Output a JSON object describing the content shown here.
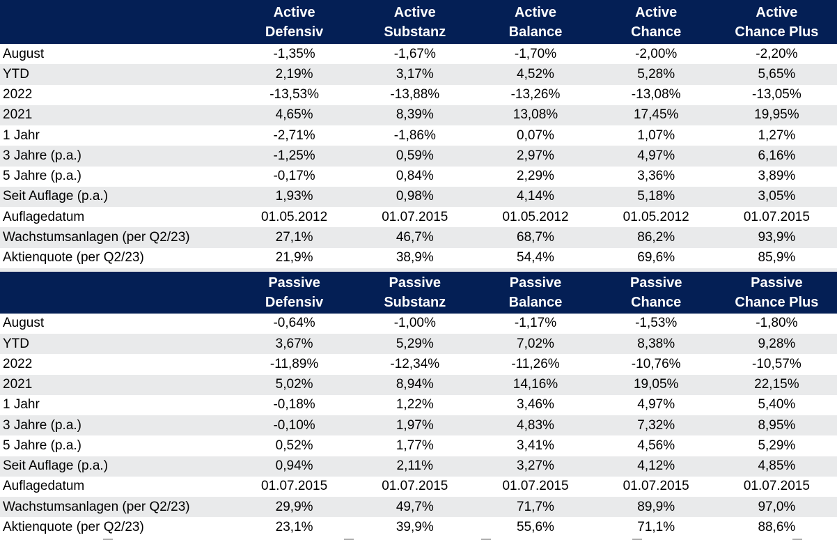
{
  "colors": {
    "header_bg": "#041F55",
    "header_text": "#FFFFFF",
    "row_bg": "#FFFFFF",
    "row_alt_bg": "#E9EAEB",
    "body_text": "#000000"
  },
  "sections": [
    {
      "id": "active",
      "columns": [
        {
          "line1": "Active",
          "line2": "Defensiv"
        },
        {
          "line1": "Active",
          "line2": "Substanz"
        },
        {
          "line1": "Active",
          "line2": "Balance"
        },
        {
          "line1": "Active",
          "line2": "Chance"
        },
        {
          "line1": "Active",
          "line2": "Chance Plus"
        }
      ],
      "rows": [
        {
          "label": "August",
          "values": [
            "-1,35%",
            "-1,67%",
            "-1,70%",
            "-2,00%",
            "-2,20%"
          ]
        },
        {
          "label": "YTD",
          "values": [
            "2,19%",
            "3,17%",
            "4,52%",
            "5,28%",
            "5,65%"
          ]
        },
        {
          "label": "2022",
          "values": [
            "-13,53%",
            "-13,88%",
            "-13,26%",
            "-13,08%",
            "-13,05%"
          ]
        },
        {
          "label": "2021",
          "values": [
            "4,65%",
            "8,39%",
            "13,08%",
            "17,45%",
            "19,95%"
          ]
        },
        {
          "label": "1 Jahr",
          "values": [
            "-2,71%",
            "-1,86%",
            "0,07%",
            "1,07%",
            "1,27%"
          ]
        },
        {
          "label": "3 Jahre (p.a.)",
          "values": [
            "-1,25%",
            "0,59%",
            "2,97%",
            "4,97%",
            "6,16%"
          ]
        },
        {
          "label": "5 Jahre (p.a.)",
          "values": [
            "-0,17%",
            "0,84%",
            "2,29%",
            "3,36%",
            "3,89%"
          ]
        },
        {
          "label": "Seit Auflage (p.a.)",
          "values": [
            "1,93%",
            "0,98%",
            "4,14%",
            "5,18%",
            "3,05%"
          ]
        },
        {
          "label": "Auflagedatum",
          "values": [
            "01.05.2012",
            "01.07.2015",
            "01.05.2012",
            "01.05.2012",
            "01.07.2015"
          ]
        },
        {
          "label": "Wachstumsanlagen (per Q2/23)",
          "values": [
            "27,1%",
            "46,7%",
            "68,7%",
            "86,2%",
            "93,9%"
          ]
        },
        {
          "label": "Aktienquote (per Q2/23)",
          "values": [
            "21,9%",
            "38,9%",
            "54,4%",
            "69,6%",
            "85,9%"
          ]
        }
      ]
    },
    {
      "id": "passive",
      "columns": [
        {
          "line1": "Passive",
          "line2": "Defensiv"
        },
        {
          "line1": "Passive",
          "line2": "Substanz"
        },
        {
          "line1": "Passive",
          "line2": "Balance"
        },
        {
          "line1": "Passive",
          "line2": "Chance"
        },
        {
          "line1": "Passive",
          "line2": "Chance Plus"
        }
      ],
      "rows": [
        {
          "label": "August",
          "values": [
            "-0,64%",
            "-1,00%",
            "-1,17%",
            "-1,53%",
            "-1,80%"
          ]
        },
        {
          "label": "YTD",
          "values": [
            "3,67%",
            "5,29%",
            "7,02%",
            "8,38%",
            "9,28%"
          ]
        },
        {
          "label": "2022",
          "values": [
            "-11,89%",
            "-12,34%",
            "-11,26%",
            "-10,76%",
            "-10,57%"
          ]
        },
        {
          "label": "2021",
          "values": [
            "5,02%",
            "8,94%",
            "14,16%",
            "19,05%",
            "22,15%"
          ]
        },
        {
          "label": "1 Jahr",
          "values": [
            "-0,18%",
            "1,22%",
            "3,46%",
            "4,97%",
            "5,40%"
          ]
        },
        {
          "label": "3 Jahre (p.a.)",
          "values": [
            "-0,10%",
            "1,97%",
            "4,83%",
            "7,32%",
            "8,95%"
          ]
        },
        {
          "label": "5 Jahre (p.a.)",
          "values": [
            "0,52%",
            "1,77%",
            "3,41%",
            "4,56%",
            "5,29%"
          ]
        },
        {
          "label": "Seit Auflage (p.a.)",
          "values": [
            "0,94%",
            "2,11%",
            "3,27%",
            "4,12%",
            "4,85%"
          ]
        },
        {
          "label": "Auflagedatum",
          "values": [
            "01.07.2015",
            "01.07.2015",
            "01.07.2015",
            "01.07.2015",
            "01.07.2015"
          ]
        },
        {
          "label": "Wachstumsanlagen (per Q2/23)",
          "values": [
            "29,9%",
            "49,7%",
            "71,7%",
            "89,9%",
            "97,0%"
          ]
        },
        {
          "label": "Aktienquote (per Q2/23)",
          "values": [
            "23,1%",
            "39,9%",
            "55,6%",
            "71,1%",
            "88,6%"
          ]
        }
      ]
    }
  ]
}
